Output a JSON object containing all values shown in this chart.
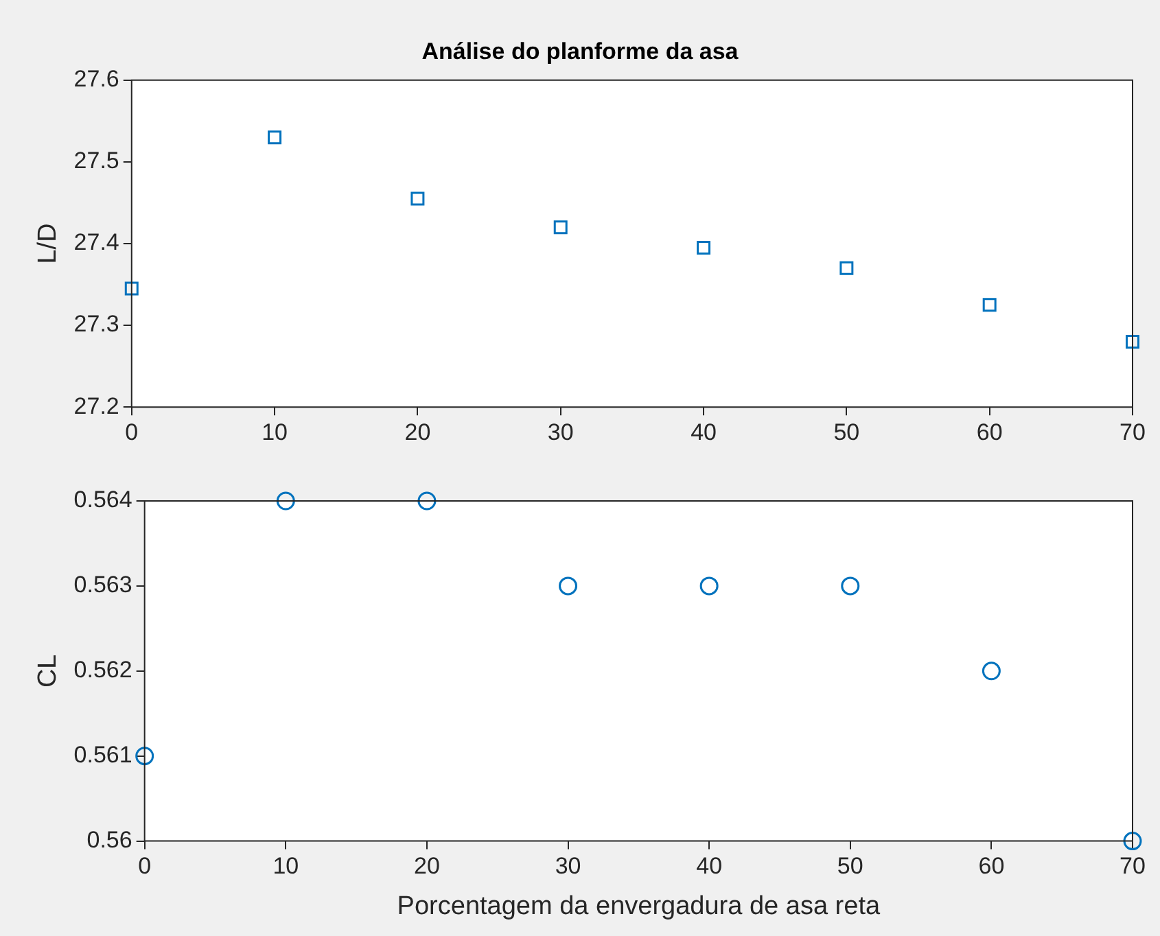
{
  "chart_data": [
    {
      "type": "scatter",
      "title": "Análise do planforme da asa",
      "ylabel": "L/D",
      "x": [
        0,
        10,
        20,
        30,
        40,
        50,
        60,
        70
      ],
      "marker": "square",
      "series": [
        {
          "color": "#0072bd",
          "values": [
            27.345,
            27.53,
            27.455,
            27.42,
            27.395,
            27.37,
            27.325,
            27.28
          ]
        }
      ],
      "xlim": [
        0,
        70
      ],
      "xticks": [
        0,
        10,
        20,
        30,
        40,
        50,
        60,
        70
      ],
      "ylim": [
        27.2,
        27.6
      ],
      "yticks": [
        27.2,
        27.3,
        27.4,
        27.5,
        27.6
      ]
    },
    {
      "type": "scatter",
      "xlabel": "Porcentagem da envergadura de asa reta",
      "ylabel": "CL",
      "x": [
        0,
        10,
        20,
        30,
        40,
        50,
        60,
        70
      ],
      "marker": "circle",
      "series": [
        {
          "color": "#0072bd",
          "values": [
            0.561,
            0.564,
            0.564,
            0.563,
            0.563,
            0.563,
            0.562,
            0.56
          ]
        }
      ],
      "xlim": [
        0,
        70
      ],
      "xticks": [
        0,
        10,
        20,
        30,
        40,
        50,
        60,
        70
      ],
      "ylim": [
        0.56,
        0.564
      ],
      "yticks": [
        0.56,
        0.561,
        0.562,
        0.563,
        0.564
      ]
    }
  ]
}
